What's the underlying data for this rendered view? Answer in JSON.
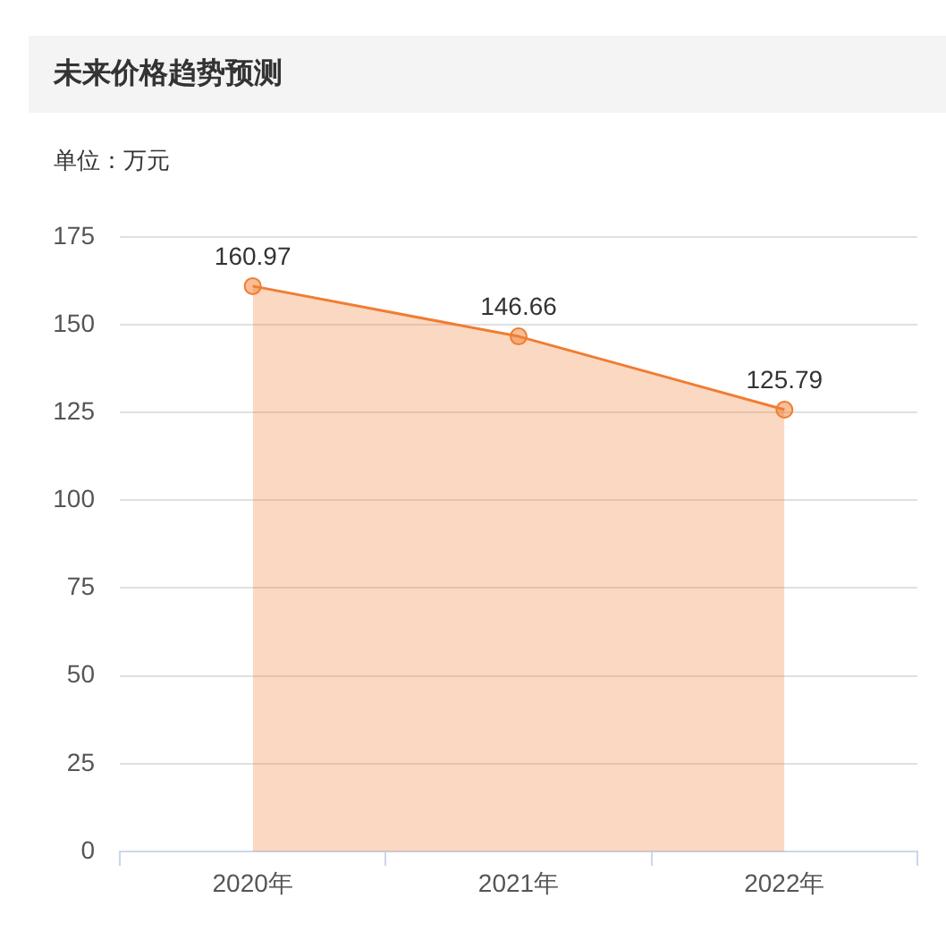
{
  "chart_data": {
    "type": "area",
    "title": "未来价格趋势预测",
    "ylabel": "单位：万元",
    "categories": [
      "2020年",
      "2021年",
      "2022年"
    ],
    "values": [
      160.97,
      146.66,
      125.79
    ],
    "color": "#f07d32",
    "marker": "circle",
    "data_labels": true,
    "grid": "y",
    "ylim": [
      0,
      175
    ],
    "yticks": [
      0,
      25,
      50,
      75,
      100,
      125,
      150,
      175
    ]
  }
}
